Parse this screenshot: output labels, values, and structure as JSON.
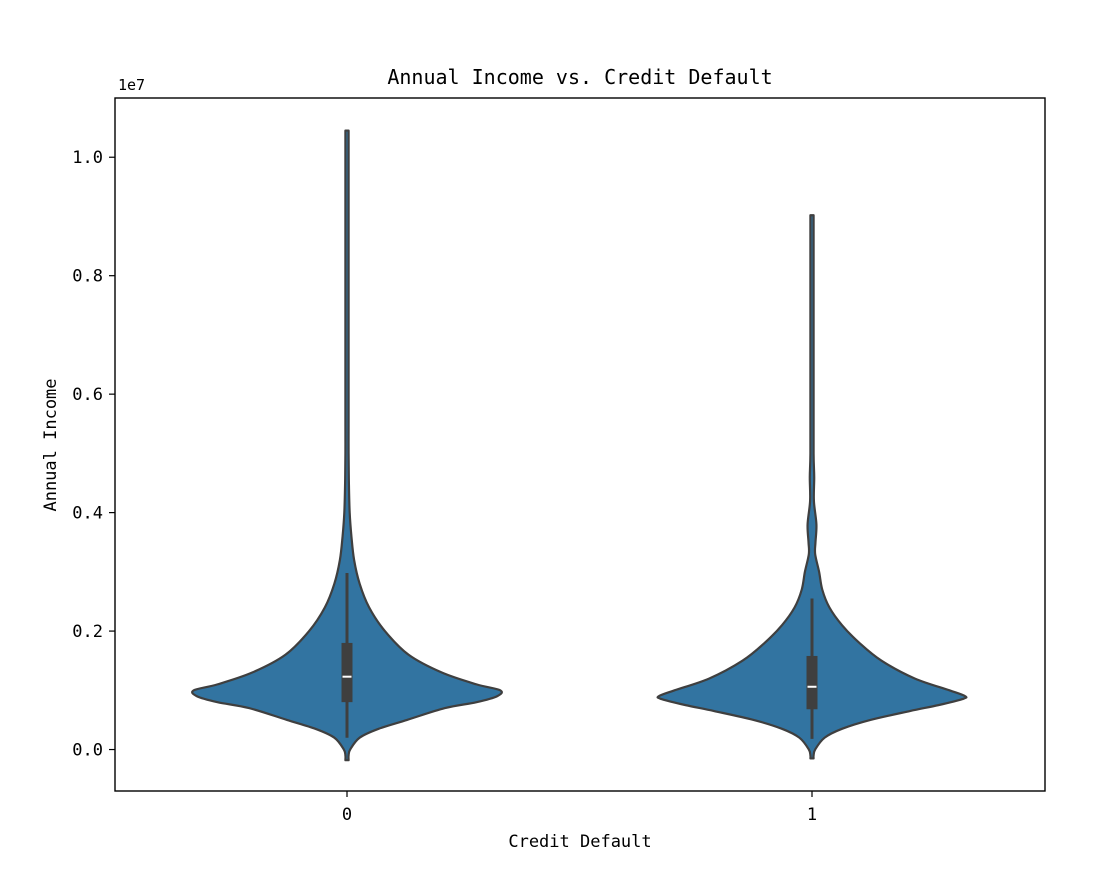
{
  "chart_data": {
    "type": "violin",
    "title": "Annual Income vs. Credit Default",
    "xlabel": "Credit Default",
    "ylabel": "Annual Income",
    "y_offset_label": "1e7",
    "y_scale_factor": 10000000,
    "ylim": [
      -0.07,
      1.1
    ],
    "y_ticks": [
      0.0,
      0.2,
      0.4,
      0.6,
      0.8,
      1.0
    ],
    "y_tick_labels": [
      "0.0",
      "0.2",
      "0.4",
      "0.6",
      "0.8",
      "1.0"
    ],
    "categories": [
      "0",
      "1"
    ],
    "grid": false,
    "colors": {
      "violin_fill": "#3274a1",
      "violin_edge": "#3f3f3f",
      "box": "#3f3f3f",
      "median": "#ffffff"
    },
    "violins": [
      {
        "category": "0",
        "whisker_low": 0.02,
        "q1": 0.08,
        "median": 0.123,
        "q3": 0.18,
        "whisker_high": 0.298,
        "density_profile": [
          [
            -0.018,
            0.0
          ],
          [
            -0.01,
            0.01
          ],
          [
            0.0,
            0.02
          ],
          [
            0.02,
            0.08
          ],
          [
            0.035,
            0.2
          ],
          [
            0.05,
            0.38
          ],
          [
            0.07,
            0.62
          ],
          [
            0.08,
            0.82
          ],
          [
            0.09,
            0.95
          ],
          [
            0.1,
            0.97
          ],
          [
            0.11,
            0.82
          ],
          [
            0.13,
            0.6
          ],
          [
            0.16,
            0.39
          ],
          [
            0.2,
            0.24
          ],
          [
            0.24,
            0.14
          ],
          [
            0.28,
            0.08
          ],
          [
            0.32,
            0.045
          ],
          [
            0.36,
            0.028
          ],
          [
            0.4,
            0.017
          ],
          [
            0.45,
            0.012
          ],
          [
            0.5,
            0.008
          ],
          [
            0.55,
            0.01
          ],
          [
            0.58,
            0.005
          ],
          [
            0.65,
            0.004
          ],
          [
            0.75,
            0.006
          ],
          [
            0.8,
            0.004
          ],
          [
            0.9,
            0.003
          ],
          [
            1.0,
            0.002
          ],
          [
            1.045,
            0.0
          ]
        ]
      },
      {
        "category": "1",
        "whisker_low": 0.018,
        "q1": 0.068,
        "median": 0.106,
        "q3": 0.158,
        "whisker_high": 0.255,
        "density_profile": [
          [
            -0.015,
            0.0
          ],
          [
            -0.01,
            0.008
          ],
          [
            0.0,
            0.02
          ],
          [
            0.02,
            0.08
          ],
          [
            0.035,
            0.19
          ],
          [
            0.05,
            0.37
          ],
          [
            0.065,
            0.62
          ],
          [
            0.075,
            0.8
          ],
          [
            0.085,
            0.95
          ],
          [
            0.09,
            0.97
          ],
          [
            0.1,
            0.87
          ],
          [
            0.12,
            0.65
          ],
          [
            0.15,
            0.44
          ],
          [
            0.18,
            0.3
          ],
          [
            0.21,
            0.19
          ],
          [
            0.24,
            0.11
          ],
          [
            0.27,
            0.065
          ],
          [
            0.3,
            0.045
          ],
          [
            0.33,
            0.02
          ],
          [
            0.35,
            0.022
          ],
          [
            0.38,
            0.028
          ],
          [
            0.42,
            0.012
          ],
          [
            0.46,
            0.014
          ],
          [
            0.5,
            0.008
          ],
          [
            0.6,
            0.005
          ],
          [
            0.75,
            0.004
          ],
          [
            0.85,
            0.003
          ],
          [
            0.902,
            0.0
          ]
        ]
      }
    ]
  }
}
